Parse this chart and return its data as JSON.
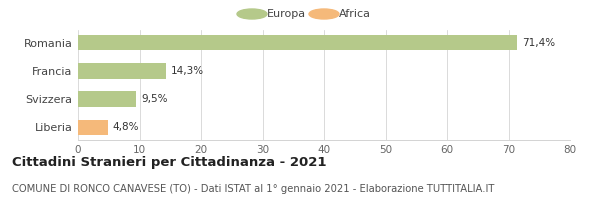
{
  "categories": [
    "Romania",
    "Francia",
    "Svizzera",
    "Liberia"
  ],
  "values": [
    71.4,
    14.3,
    9.5,
    4.8
  ],
  "labels": [
    "71,4%",
    "14,3%",
    "9,5%",
    "4,8%"
  ],
  "colors": [
    "#b5c98a",
    "#b5c98a",
    "#b5c98a",
    "#f5b97a"
  ],
  "legend": [
    {
      "label": "Europa",
      "color": "#b5c98a"
    },
    {
      "label": "Africa",
      "color": "#f5b97a"
    }
  ],
  "xlim": [
    0,
    80
  ],
  "xticks": [
    0,
    10,
    20,
    30,
    40,
    50,
    60,
    70,
    80
  ],
  "title": "Cittadini Stranieri per Cittadinanza - 2021",
  "subtitle": "COMUNE DI RONCO CANAVESE (TO) - Dati ISTAT al 1° gennaio 2021 - Elaborazione TUTTITALIA.IT",
  "title_fontsize": 9.5,
  "subtitle_fontsize": 7.2,
  "background_color": "#ffffff",
  "bar_height": 0.55,
  "label_fontsize": 7.5,
  "tick_fontsize": 7.5,
  "ytick_fontsize": 8,
  "legend_fontsize": 8
}
